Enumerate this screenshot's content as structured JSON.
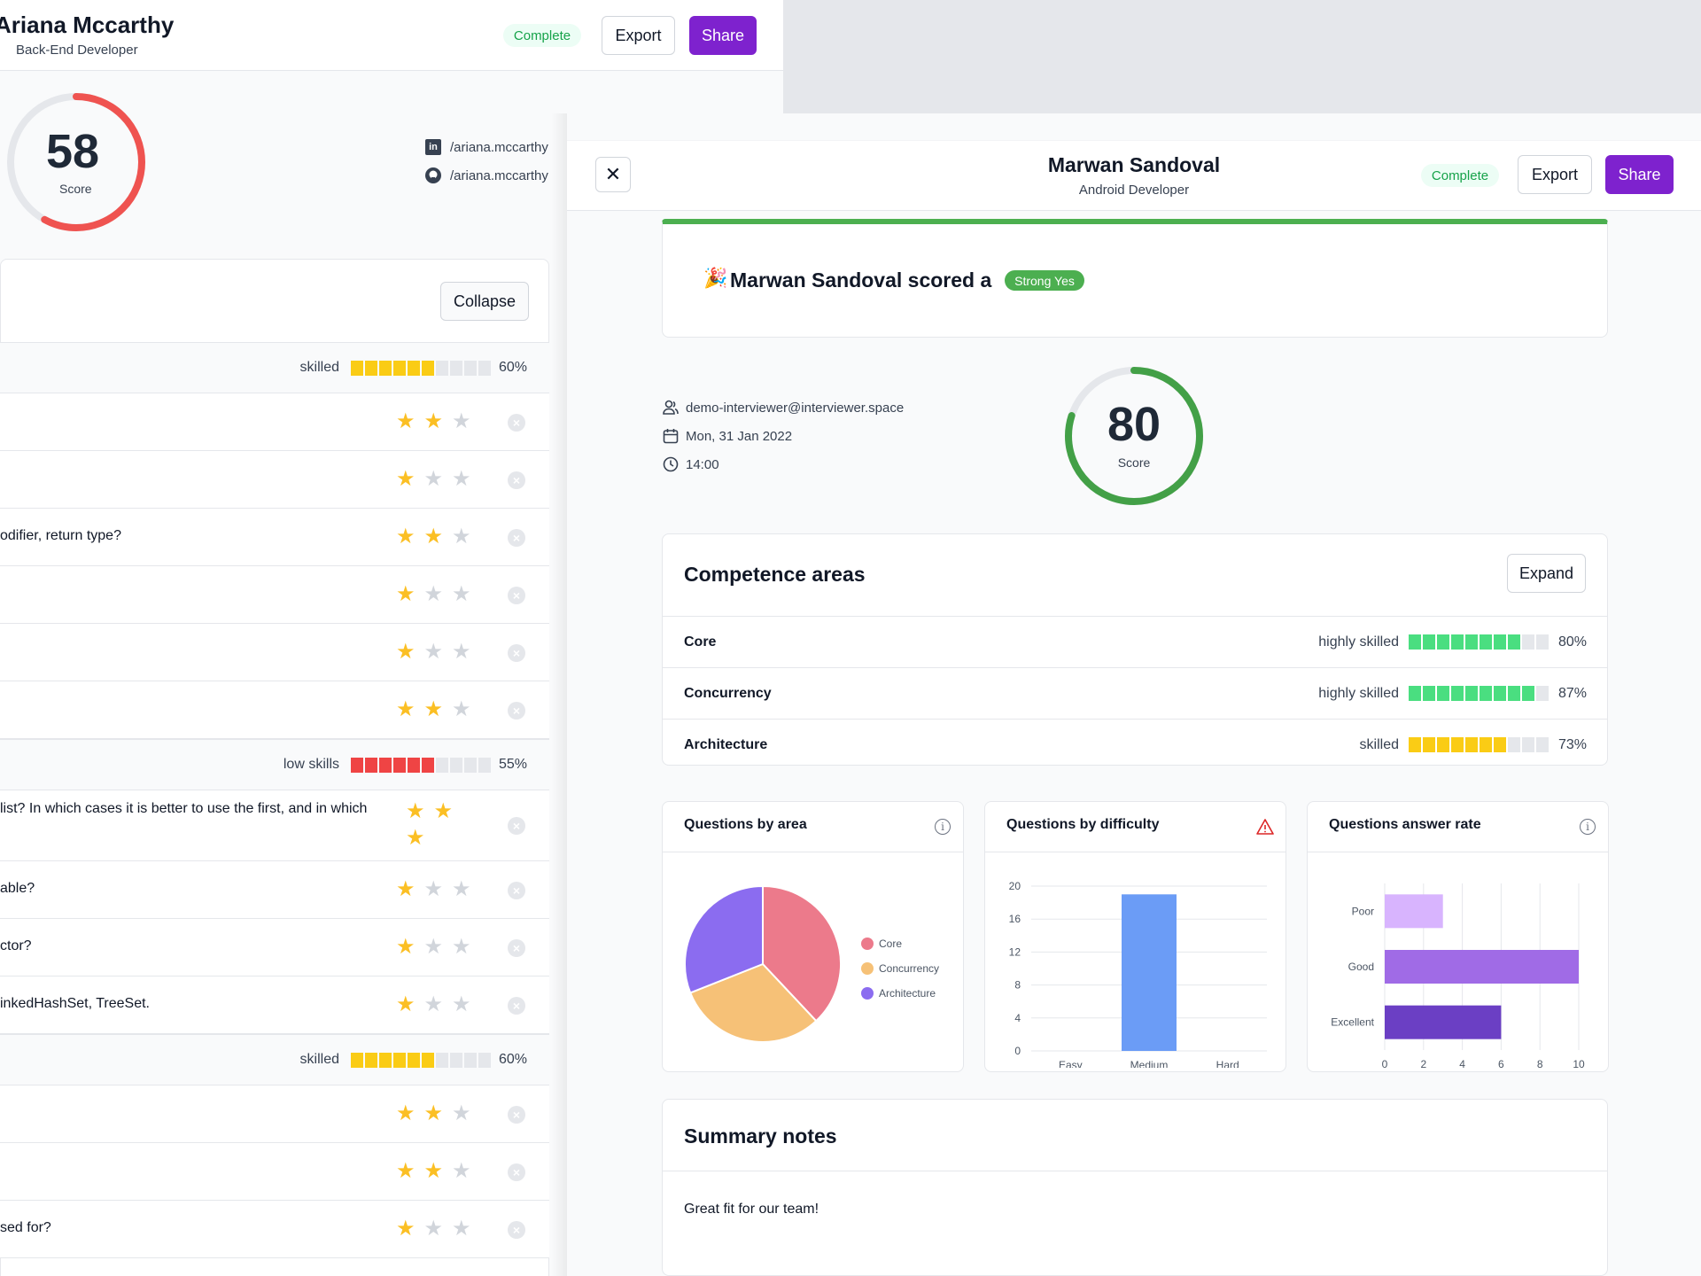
{
  "left_panel": {
    "candidate_name": "Ariana Mccarthy",
    "candidate_role": "Back-End Developer",
    "status": "Complete",
    "export_label": "Export",
    "share_label": "Share",
    "score": {
      "value": "58",
      "label": "Score",
      "percent": 58
    },
    "linkedin": "/ariana.mccarthy",
    "github": "/ariana.mccarthy",
    "collapse_label": "Collapse",
    "sections": [
      {
        "level": "skilled",
        "percent": "60%",
        "filled": 6,
        "color": "#facc15",
        "questions": [
          {
            "text": "",
            "stars": 2
          },
          {
            "text": "",
            "stars": 1
          },
          {
            "text": "odifier, return type?",
            "stars": 2
          },
          {
            "text": "",
            "stars": 1
          },
          {
            "text": "",
            "stars": 1
          },
          {
            "text": "",
            "stars": 2
          }
        ]
      },
      {
        "level": "low skills",
        "percent": "55%",
        "filled": 6,
        "color": "#ef4444",
        "questions": [
          {
            "text": "list? In which cases it is better to use the first, and in which",
            "stars": 3
          },
          {
            "text": "able?",
            "stars": 1
          },
          {
            "text": "ctor?",
            "stars": 1
          },
          {
            "text": "inkedHashSet, TreeSet.",
            "stars": 1
          }
        ]
      },
      {
        "level": "skilled",
        "percent": "60%",
        "filled": 6,
        "color": "#facc15",
        "questions": [
          {
            "text": "",
            "stars": 2
          },
          {
            "text": "",
            "stars": 2
          },
          {
            "text": "sed for?",
            "stars": 1
          }
        ]
      }
    ]
  },
  "right_panel": {
    "close_icon": "close-icon",
    "candidate_name": "Marwan Sandoval",
    "candidate_role": "Android Developer",
    "status": "Complete",
    "export_label": "Export",
    "share_label": "Share",
    "verdict_emoji": "🎉",
    "verdict_text": "Marwan Sandoval scored a",
    "verdict_badge": "Strong Yes",
    "interviewer_email": "demo-interviewer@interviewer.space",
    "date": "Mon, 31 Jan 2022",
    "time": "14:00",
    "score": {
      "value": "80",
      "label": "Score",
      "percent": 80
    },
    "competence": {
      "title": "Competence areas",
      "expand_label": "Expand",
      "rows": [
        {
          "name": "Core",
          "level": "highly skilled",
          "percent": "80%",
          "filled": 8,
          "color": "#4ade80"
        },
        {
          "name": "Concurrency",
          "level": "highly skilled",
          "percent": "87%",
          "filled": 9,
          "color": "#4ade80"
        },
        {
          "name": "Architecture",
          "level": "skilled",
          "percent": "73%",
          "filled": 7,
          "color": "#facc15"
        }
      ]
    },
    "charts": {
      "area_title": "Questions by area",
      "difficulty_title": "Questions by difficulty",
      "answer_title": "Questions answer rate"
    },
    "summary": {
      "title": "Summary notes",
      "text": "Great fit for our team!"
    }
  },
  "chart_data": [
    {
      "type": "pie",
      "title": "Questions by area",
      "categories": [
        "Core",
        "Concurrency",
        "Architecture"
      ],
      "values": [
        38,
        31,
        31
      ],
      "colors": [
        "#ec7a8b",
        "#f6c177",
        "#8b6cf0"
      ],
      "legend": "right"
    },
    {
      "type": "bar",
      "title": "Questions by difficulty",
      "categories": [
        "Easy",
        "Medium",
        "Hard"
      ],
      "values": [
        0,
        19,
        0
      ],
      "ylim": [
        0,
        20
      ],
      "yticks": [
        "0",
        "4",
        "8",
        "12",
        "16",
        "20"
      ],
      "color": "#6b9cf6",
      "grid": true
    },
    {
      "type": "bar",
      "orientation": "horizontal",
      "title": "Questions answer rate",
      "categories": [
        "Poor",
        "Good",
        "Excellent"
      ],
      "values": [
        3,
        10,
        6
      ],
      "colors": [
        "#d8b4fe",
        "#a06be6",
        "#6b3fc4"
      ],
      "xlim": [
        0,
        10
      ],
      "xticks": [
        "0",
        "2",
        "4",
        "6",
        "8",
        "10"
      ],
      "grid": true
    }
  ]
}
